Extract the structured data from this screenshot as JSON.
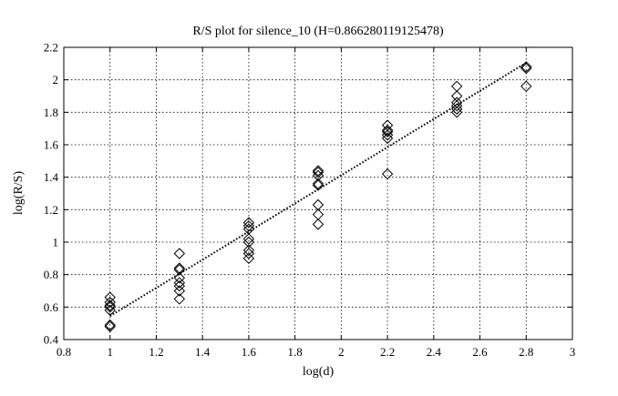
{
  "chart_data": {
    "type": "scatter",
    "title": "R/S plot for silence_10 (H=0.866280119125478)",
    "xlabel": "log(d)",
    "ylabel": "log(R/S)",
    "xlim": [
      0.8,
      3
    ],
    "ylim": [
      0.4,
      2.2
    ],
    "xticks": [
      "0.8",
      "1",
      "1.2",
      "1.4",
      "1.6",
      "1.8",
      "2",
      "2.2",
      "2.4",
      "2.6",
      "2.8",
      "3"
    ],
    "yticks": [
      "0.4",
      "0.6",
      "0.8",
      "1",
      "1.2",
      "1.4",
      "1.6",
      "1.8",
      "2",
      "2.2"
    ],
    "grid": true,
    "marker": "diamond",
    "series": [
      {
        "points": [
          [
            1.0,
            0.48
          ],
          [
            1.0,
            0.49
          ],
          [
            1.0,
            0.58
          ],
          [
            1.0,
            0.6
          ],
          [
            1.0,
            0.61
          ],
          [
            1.0,
            0.63
          ],
          [
            1.0,
            0.66
          ],
          [
            1.3,
            0.65
          ],
          [
            1.3,
            0.7
          ],
          [
            1.3,
            0.73
          ],
          [
            1.3,
            0.75
          ],
          [
            1.3,
            0.78
          ],
          [
            1.3,
            0.83
          ],
          [
            1.3,
            0.84
          ],
          [
            1.3,
            0.93
          ],
          [
            1.6,
            0.9
          ],
          [
            1.6,
            0.93
          ],
          [
            1.6,
            0.95
          ],
          [
            1.6,
            1.0
          ],
          [
            1.6,
            1.02
          ],
          [
            1.6,
            1.08
          ],
          [
            1.6,
            1.1
          ],
          [
            1.6,
            1.12
          ],
          [
            1.9,
            1.11
          ],
          [
            1.9,
            1.17
          ],
          [
            1.9,
            1.23
          ],
          [
            1.9,
            1.35
          ],
          [
            1.9,
            1.36
          ],
          [
            1.9,
            1.41
          ],
          [
            1.9,
            1.43
          ],
          [
            1.9,
            1.44
          ],
          [
            2.2,
            1.42
          ],
          [
            2.2,
            1.64
          ],
          [
            2.2,
            1.66
          ],
          [
            2.2,
            1.68
          ],
          [
            2.2,
            1.69
          ],
          [
            2.2,
            1.72
          ],
          [
            2.5,
            1.8
          ],
          [
            2.5,
            1.82
          ],
          [
            2.5,
            1.84
          ],
          [
            2.5,
            1.86
          ],
          [
            2.5,
            1.9
          ],
          [
            2.5,
            1.96
          ],
          [
            2.8,
            1.96
          ],
          [
            2.8,
            2.07
          ],
          [
            2.8,
            2.08
          ]
        ]
      }
    ],
    "fit_line": {
      "x": [
        1.0,
        2.8
      ],
      "y": [
        0.545,
        2.105
      ],
      "style": "dotted"
    }
  }
}
